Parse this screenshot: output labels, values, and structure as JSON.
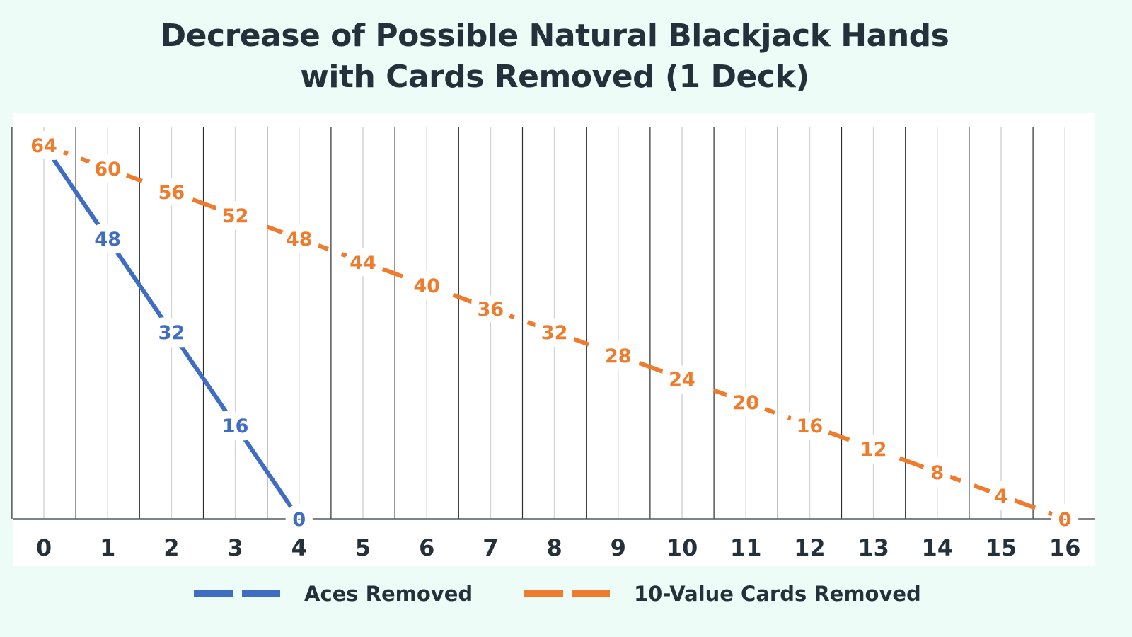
{
  "chart_data": {
    "type": "line",
    "title": "Decrease of Possible Natural Blackjack Hands with Cards Removed (1 Deck)",
    "title_lines": [
      "Decrease of Possible Natural Blackjack Hands",
      "with Cards Removed (1 Deck)"
    ],
    "xlabel": "",
    "ylabel": "",
    "x": [
      0,
      1,
      2,
      3,
      4,
      5,
      6,
      7,
      8,
      9,
      10,
      11,
      12,
      13,
      14,
      15,
      16
    ],
    "xlim": [
      0,
      16
    ],
    "ylim": [
      0,
      64
    ],
    "grid": "vertical",
    "legend_position": "bottom",
    "series": [
      {
        "name": "Aces Removed",
        "color": "#3f6dc4",
        "x": [
          0,
          1,
          2,
          3,
          4
        ],
        "values": [
          64,
          48,
          32,
          16,
          0
        ],
        "labels_shown": [
          false,
          true,
          true,
          true,
          true
        ]
      },
      {
        "name": "10-Value Cards Removed",
        "color": "#ef7b2c",
        "x": [
          0,
          1,
          2,
          3,
          4,
          5,
          6,
          7,
          8,
          9,
          10,
          11,
          12,
          13,
          14,
          15,
          16
        ],
        "values": [
          64,
          60,
          56,
          52,
          48,
          44,
          40,
          36,
          32,
          28,
          24,
          20,
          16,
          12,
          8,
          4,
          0
        ],
        "labels_shown": [
          true,
          true,
          true,
          true,
          true,
          true,
          true,
          true,
          true,
          true,
          true,
          true,
          true,
          true,
          true,
          true,
          true
        ]
      }
    ]
  }
}
